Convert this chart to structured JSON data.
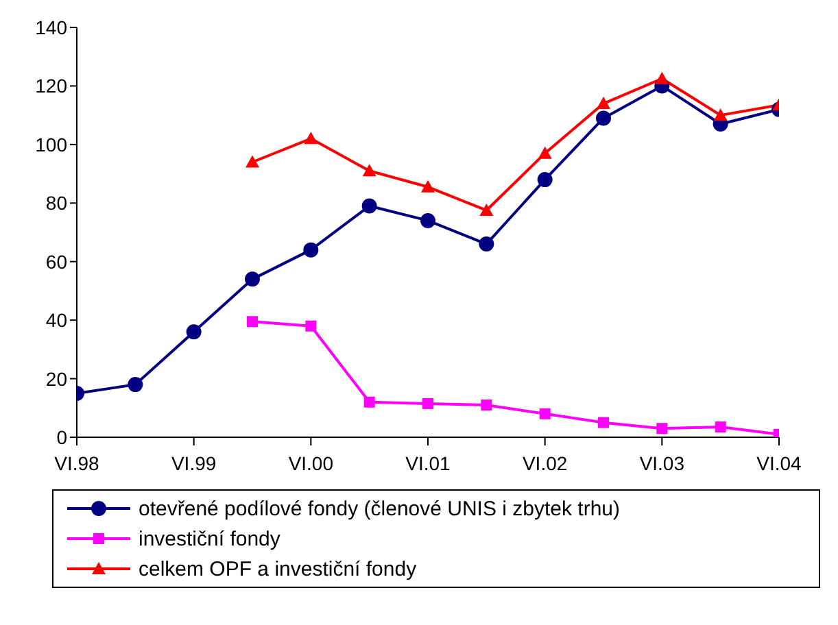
{
  "chart_data": {
    "type": "line",
    "categories": [
      "VI.98",
      null,
      "VI.99",
      null,
      "VI.00",
      null,
      "VI.01",
      null,
      "VI.02",
      null,
      "VI.03",
      null,
      "VI.04"
    ],
    "ylim": [
      0,
      140
    ],
    "yticks": [
      0,
      20,
      40,
      60,
      80,
      100,
      120,
      140
    ],
    "grid": false,
    "legend": "bottom",
    "series": [
      {
        "name": "otevřené podílové fondy (členové UNIS i zbytek trhu)",
        "color": "#000080",
        "marker": "circle",
        "values": [
          15,
          18,
          36,
          54,
          64,
          79,
          74,
          66,
          88,
          109,
          120,
          107,
          112
        ]
      },
      {
        "name": "investiční fondy",
        "color": "#ff00ff",
        "marker": "square",
        "values": [
          null,
          null,
          null,
          39.5,
          38,
          12,
          11.5,
          11,
          8,
          5,
          3,
          3.5,
          1
        ]
      },
      {
        "name": "celkem OPF a investiční fondy",
        "color": "#ff0000",
        "marker": "triangle",
        "values": [
          null,
          null,
          null,
          94,
          102,
          91,
          85.5,
          77.5,
          97,
          114,
          122.5,
          110,
          113.5
        ]
      }
    ]
  }
}
